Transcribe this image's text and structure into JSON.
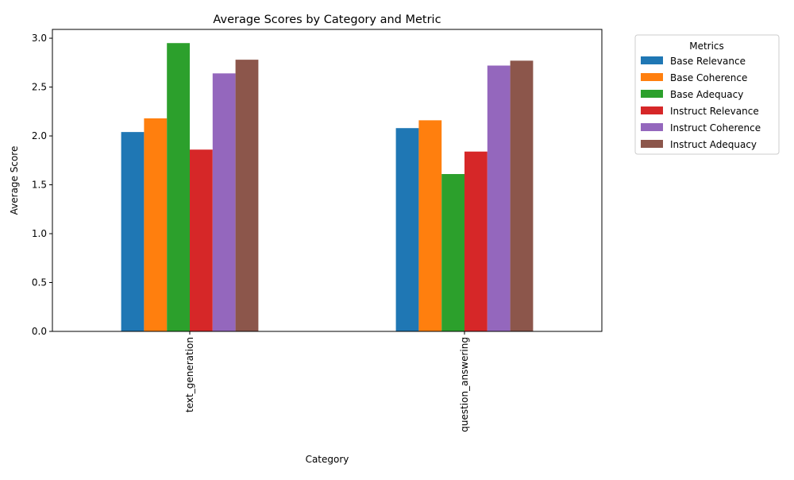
{
  "chart_data": {
    "type": "bar",
    "title": "Average Scores by Category and Metric",
    "xlabel": "Category",
    "ylabel": "Average Score",
    "categories": [
      "text_generation",
      "question_answering"
    ],
    "ylim": [
      0,
      3.09
    ],
    "yticks": [
      0.0,
      0.5,
      1.0,
      1.5,
      2.0,
      2.5,
      3.0
    ],
    "ytick_labels": [
      "0.0",
      "0.5",
      "1.0",
      "1.5",
      "2.0",
      "2.5",
      "3.0"
    ],
    "grid": false,
    "legend": {
      "title": "Metrics",
      "placement": "outside-top-right"
    },
    "series": [
      {
        "name": "Base Relevance",
        "color": "#1f77b4",
        "values": [
          2.04,
          2.08
        ]
      },
      {
        "name": "Base Coherence",
        "color": "#ff7f0e",
        "values": [
          2.18,
          2.16
        ]
      },
      {
        "name": "Base Adequacy",
        "color": "#2ca02c",
        "values": [
          2.95,
          1.61
        ]
      },
      {
        "name": "Instruct Relevance",
        "color": "#d62728",
        "values": [
          1.86,
          1.84
        ]
      },
      {
        "name": "Instruct Coherence",
        "color": "#9467bd",
        "values": [
          2.64,
          2.72
        ]
      },
      {
        "name": "Instruct Adequacy",
        "color": "#8c564b",
        "values": [
          2.78,
          2.77
        ]
      }
    ]
  }
}
